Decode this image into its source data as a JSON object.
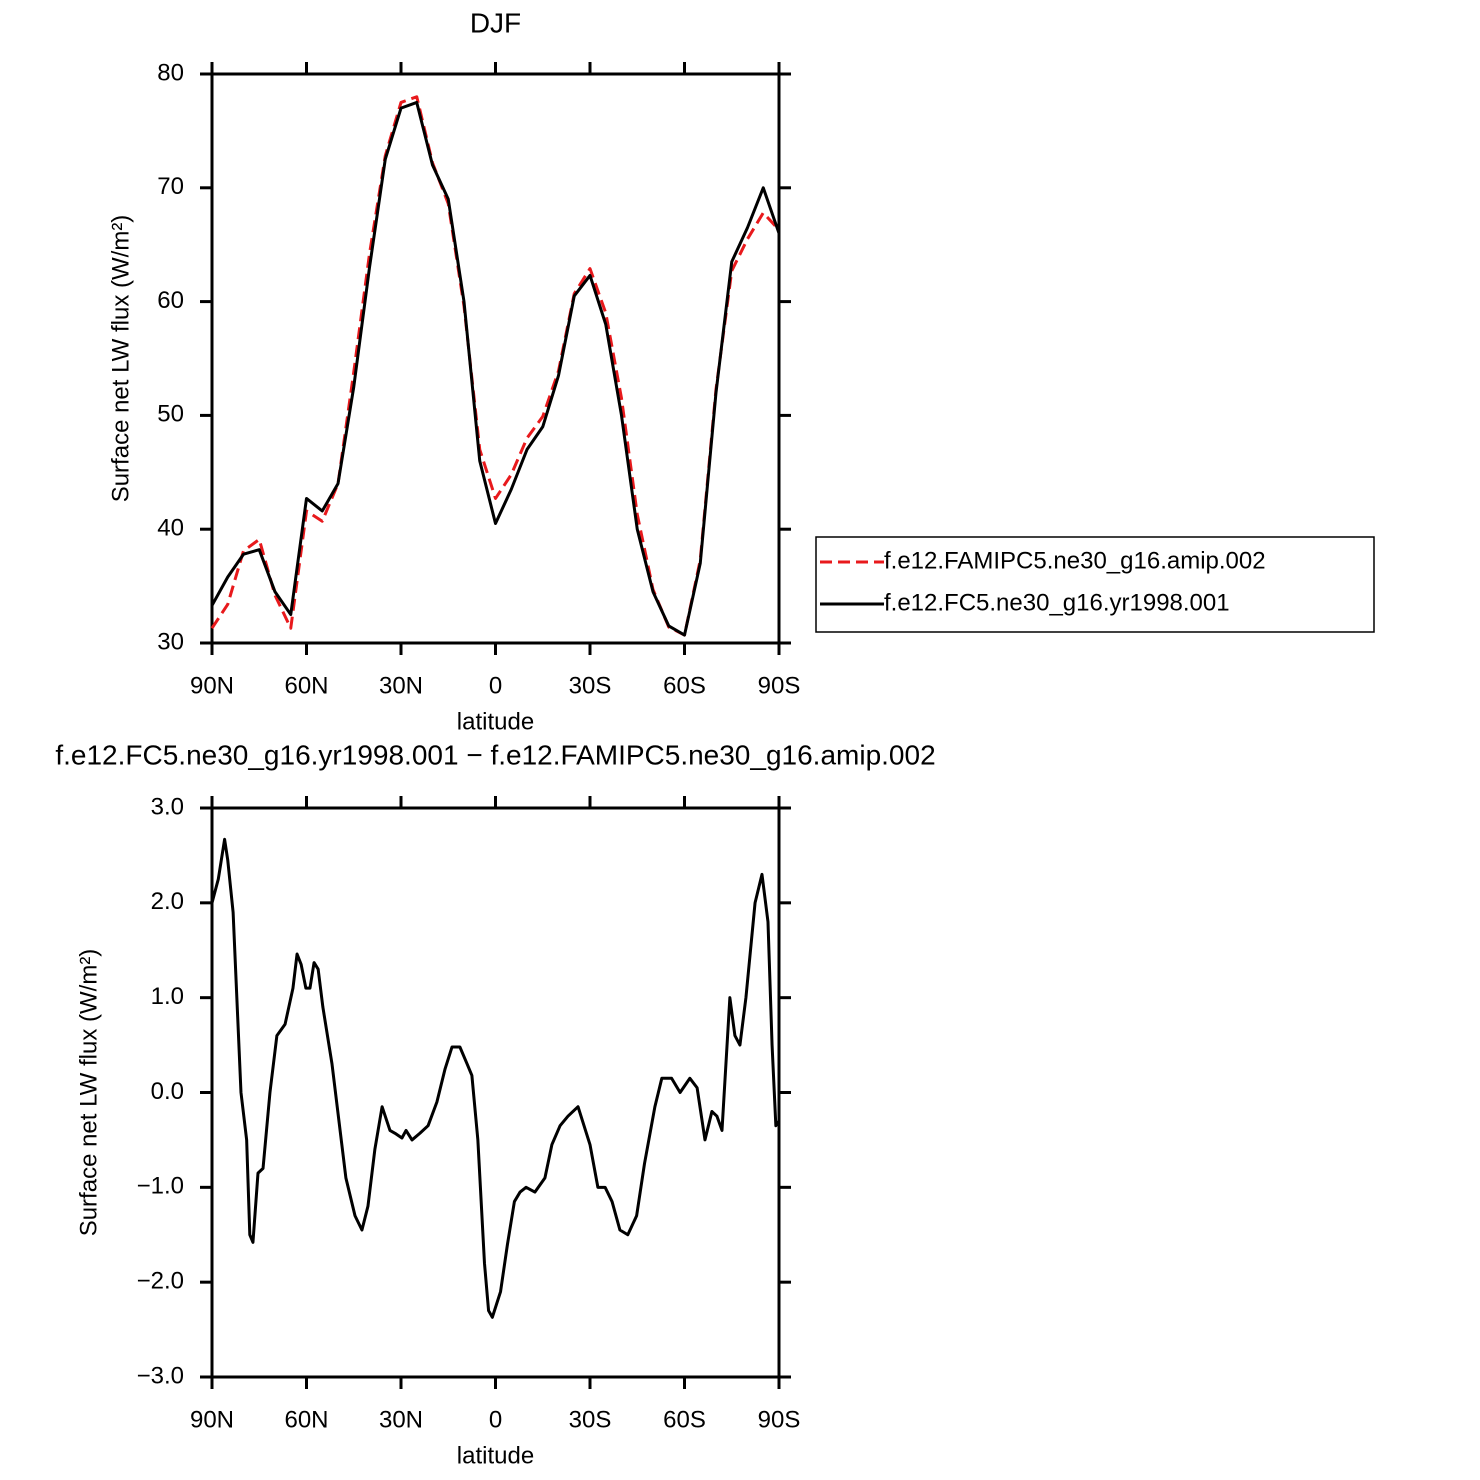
{
  "chart_data": [
    {
      "type": "line",
      "title": "DJF",
      "x_label": "latitude",
      "y_label": "Surface net LW flux (W/m²)",
      "x": [
        90,
        85,
        80,
        75,
        70,
        65,
        60,
        55,
        50,
        45,
        40,
        35,
        30,
        25,
        20,
        15,
        10,
        5,
        0,
        -5,
        -10,
        -15,
        -20,
        -25,
        -30,
        -35,
        -40,
        -45,
        -50,
        -55,
        -60,
        -65,
        -70,
        -75,
        -80,
        -85,
        -90
      ],
      "xlim": [
        90,
        -90
      ],
      "xticks": [
        {
          "value": 90,
          "label": "90N"
        },
        {
          "value": 60,
          "label": "60N"
        },
        {
          "value": 30,
          "label": "30N"
        },
        0,
        {
          "value": -30,
          "label": "30S"
        },
        {
          "value": -60,
          "label": "60S"
        },
        {
          "value": -90,
          "label": "90S"
        }
      ],
      "ylim": [
        30,
        80
      ],
      "yticks": [
        30,
        40,
        50,
        60,
        70,
        80
      ],
      "legend": "right",
      "series": [
        {
          "name": "f.e12.FAMIPC5.ne30_g16.amip.002",
          "color": "#e8191c",
          "line_style": "dashed",
          "values": [
            31.3,
            33.4,
            38.1,
            39.1,
            34.2,
            31.3,
            41.6,
            40.7,
            44.0,
            53.8,
            64.2,
            72.8,
            77.5,
            78.0,
            72.2,
            68.6,
            59.6,
            47.0,
            42.7,
            44.8,
            48.0,
            49.9,
            53.9,
            60.7,
            62.9,
            59.0,
            51.5,
            41.3,
            34.7,
            31.4,
            30.7,
            37.3,
            52.3,
            62.7,
            65.5,
            67.8,
            66.3
          ]
        },
        {
          "name": "f.e12.FC5.ne30_g16.yr1998.001",
          "color": "#000000",
          "line_style": "solid",
          "values": [
            33.3,
            35.8,
            37.8,
            38.2,
            34.5,
            32.5,
            42.7,
            41.6,
            44.0,
            52.5,
            63.0,
            72.5,
            77.0,
            77.5,
            72.0,
            69.0,
            60.0,
            46.0,
            40.5,
            43.5,
            47.0,
            49.0,
            53.5,
            60.5,
            62.3,
            58.0,
            50.0,
            40.0,
            34.5,
            31.5,
            30.7,
            37.0,
            52.0,
            63.5,
            66.5,
            70.0,
            66.0
          ]
        }
      ]
    },
    {
      "type": "line",
      "title": "f.e12.FC5.ne30_g16.yr1998.001 − f.e12.FAMIPC5.ne30_g16.amip.002",
      "x_label": "latitude",
      "y_label": "Surface net LW flux (W/m²)",
      "x": [
        90,
        88,
        86,
        85,
        83.3,
        80.8,
        79,
        78,
        77,
        75.4,
        73.8,
        71.6,
        69.4,
        66.8,
        64.3,
        63,
        61.7,
        60.2,
        58.9,
        57.6,
        56.3,
        54.8,
        51.9,
        47.5,
        44.6,
        42.4,
        40.5,
        38.3,
        36,
        33.5,
        31.9,
        29.7,
        28.4,
        26.5,
        24,
        21.4,
        18.6,
        16,
        13.8,
        11.3,
        9,
        7.5,
        5.6,
        3.5,
        2.2,
        1,
        -1.6,
        -3.8,
        -6,
        -7.8,
        -9.7,
        -12.5,
        -15.7,
        -17.9,
        -20.5,
        -23,
        -26.2,
        -30,
        -32.5,
        -34.8,
        -37,
        -39.5,
        -42,
        -44.8,
        -47.3,
        -50.6,
        -52.8,
        -55.9,
        -58.6,
        -61.7,
        -64,
        -66.5,
        -68.7,
        -70.3,
        -71.9,
        -74.4,
        -76,
        -77.6,
        -79.5,
        -82.4,
        -84.6,
        -86.5,
        -87.8,
        -89,
        -90
      ],
      "values": [
        2.0,
        2.25,
        2.67,
        2.45,
        1.9,
        0.0,
        -0.5,
        -1.5,
        -1.58,
        -0.85,
        -0.8,
        0.0,
        0.6,
        0.72,
        1.1,
        1.46,
        1.35,
        1.1,
        1.1,
        1.37,
        1.3,
        0.9,
        0.3,
        -0.9,
        -1.3,
        -1.45,
        -1.2,
        -0.6,
        -0.15,
        -0.4,
        -0.43,
        -0.48,
        -0.4,
        -0.5,
        -0.43,
        -0.35,
        -0.1,
        0.25,
        0.48,
        0.48,
        0.3,
        0.18,
        -0.5,
        -1.8,
        -2.3,
        -2.37,
        -2.1,
        -1.6,
        -1.15,
        -1.05,
        -1.0,
        -1.05,
        -0.9,
        -0.55,
        -0.35,
        -0.25,
        -0.15,
        -0.55,
        -1.0,
        -1.0,
        -1.15,
        -1.45,
        -1.5,
        -1.3,
        -0.75,
        -0.15,
        0.15,
        0.15,
        0.0,
        0.15,
        0.05,
        -0.5,
        -0.2,
        -0.25,
        -0.4,
        1.0,
        0.6,
        0.5,
        1.0,
        2.0,
        2.3,
        1.8,
        0.5,
        -0.35,
        -0.3
      ],
      "color": "#000000",
      "line_style": "solid",
      "xlim": [
        90,
        -90
      ],
      "xticks": [
        {
          "value": 90,
          "label": "90N"
        },
        {
          "value": 60,
          "label": "60N"
        },
        {
          "value": 30,
          "label": "30N"
        },
        0,
        {
          "value": -30,
          "label": "30S"
        },
        {
          "value": -60,
          "label": "60S"
        },
        {
          "value": -90,
          "label": "90S"
        }
      ],
      "ylim": [
        -3,
        3
      ],
      "yticks": [
        {
          "value": -3,
          "label": "−3.0"
        },
        {
          "value": -2,
          "label": "−2.0"
        },
        {
          "value": -1,
          "label": "−1.0"
        },
        {
          "value": 0,
          "label": "0.0"
        },
        {
          "value": 1,
          "label": "1.0"
        },
        {
          "value": 2,
          "label": "2.0"
        },
        {
          "value": 3,
          "label": "3.0"
        }
      ]
    }
  ]
}
